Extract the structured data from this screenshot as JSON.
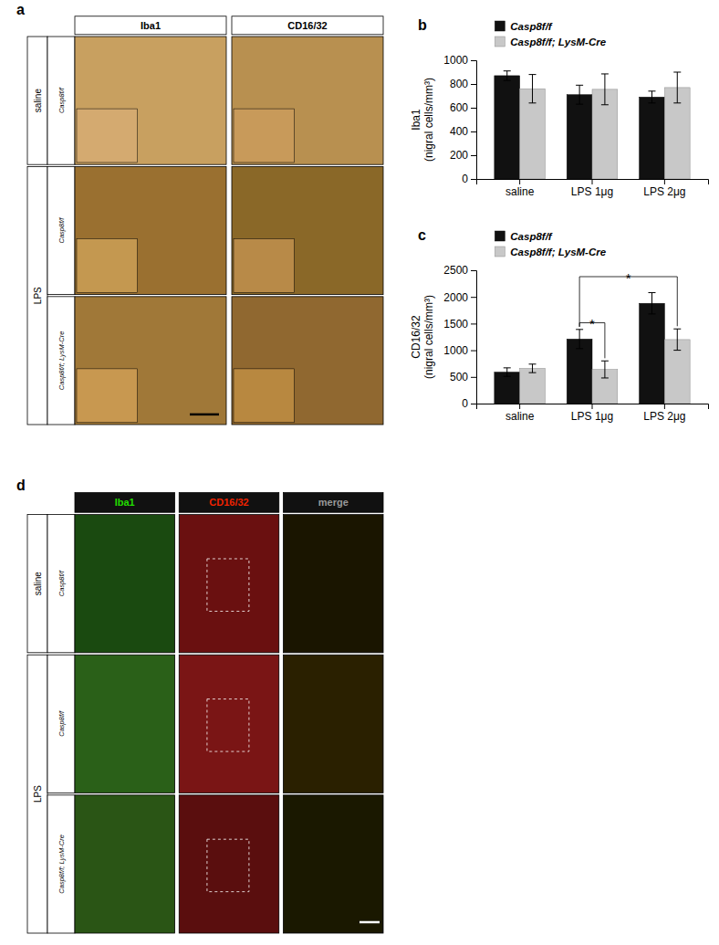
{
  "chart_data": [
    {
      "type": "image_grid",
      "title": "a",
      "columns": [
        "Iba1",
        "CD16/32"
      ],
      "row_groups": [
        "saline",
        "LPS",
        "LPS"
      ],
      "rows": [
        "Casp8f/f",
        "Casp8f/f",
        "Casp8f/f; LysM-Cre"
      ],
      "cell_colors": [
        [
          "#c8a060",
          "#b89050"
        ],
        [
          "#9a7030",
          "#8a6828"
        ],
        [
          "#a07838",
          "#906830"
        ]
      ],
      "inset_colors": [
        [
          "#d4aa70",
          "#c89a5a"
        ],
        [
          "#c49850",
          "#b88a48"
        ],
        [
          "#c89850",
          "#b88840"
        ]
      ]
    },
    {
      "type": "bar",
      "title": "b",
      "ylabel": "Iba1\n(nigral cells/mm³)",
      "categories": [
        "saline",
        "LPS 1μg",
        "LPS 2μg"
      ],
      "series": [
        {
          "name": "Casp8f/f",
          "color": "#111111",
          "values": [
            870,
            710,
            690
          ],
          "errors": [
            40,
            80,
            50
          ]
        },
        {
          "name": "Casp8f/f; LysM-Cre",
          "color": "#c8c8c8",
          "values": [
            760,
            755,
            770
          ],
          "errors": [
            120,
            130,
            130
          ]
        }
      ],
      "ylim": [
        0,
        1000
      ],
      "yticks": [
        0,
        200,
        400,
        600,
        800,
        1000
      ],
      "legend": "upper left",
      "grid": false
    },
    {
      "type": "bar",
      "title": "c",
      "ylabel": "CD16/32\n(nigral cells/mm³)",
      "categories": [
        "saline",
        "LPS 1μg",
        "LPS 2μg"
      ],
      "series": [
        {
          "name": "Casp8f/f",
          "color": "#111111",
          "values": [
            590,
            1210,
            1880
          ],
          "errors": [
            80,
            180,
            200
          ]
        },
        {
          "name": "Casp8f/f; LysM-Cre",
          "color": "#c8c8c8",
          "values": [
            660,
            640,
            1200
          ],
          "errors": [
            80,
            160,
            200
          ]
        }
      ],
      "ylim": [
        0,
        2500
      ],
      "yticks": [
        0,
        500,
        1000,
        1500,
        2000,
        2500
      ],
      "legend": "upper left",
      "grid": false,
      "annotations": [
        {
          "text": "*",
          "from": {
            "series": "Casp8f/f",
            "category": "LPS 1μg"
          },
          "to": {
            "series": "Casp8f/f; LysM-Cre",
            "category": "LPS 1μg"
          }
        },
        {
          "text": "*",
          "from": {
            "series": "Casp8f/f",
            "category": "LPS 1μg"
          },
          "to": {
            "series": "Casp8f/f; LysM-Cre",
            "category": "LPS 2μg"
          }
        }
      ]
    },
    {
      "type": "image_grid",
      "title": "d",
      "columns": [
        "Iba1",
        "CD16/32",
        "merge"
      ],
      "column_colors": [
        "#22dd00",
        "#ee2200",
        "#999999"
      ],
      "header_color": "#111111",
      "row_groups": [
        "saline",
        "LPS",
        "LPS"
      ],
      "rows": [
        "Casp8f/f",
        "Casp8f/f",
        "Casp8f/f; LysM-Cre"
      ],
      "cell_colors": [
        [
          "#1a4a10",
          "#6a1010",
          "#1a1500"
        ],
        [
          "#2a6018",
          "#7a1515",
          "#2a2000"
        ],
        [
          "#2a5515",
          "#5a0e0e",
          "#1a1800"
        ]
      ]
    }
  ]
}
